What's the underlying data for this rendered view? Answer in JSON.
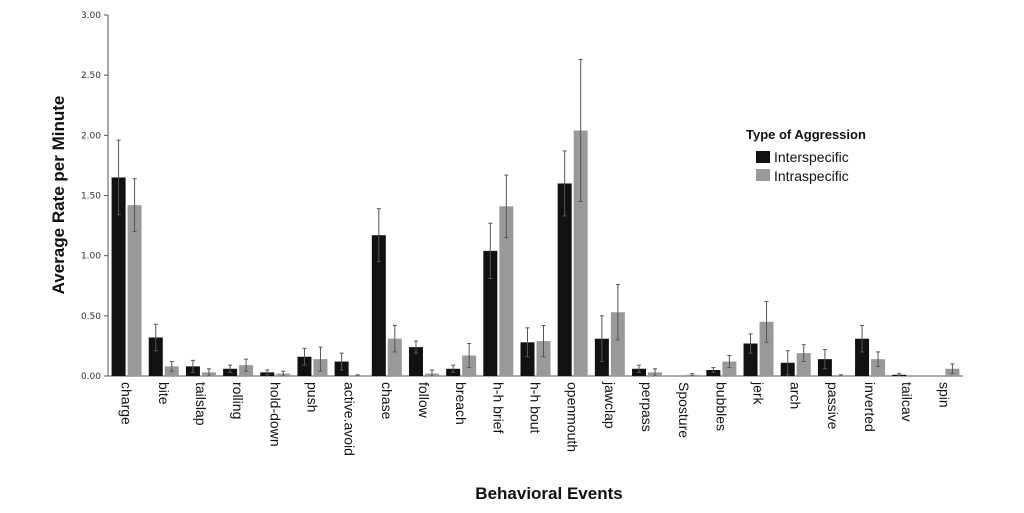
{
  "chart_data": {
    "type": "bar",
    "xlabel": "Behavioral Events",
    "ylabel": "Average Rate per Minute",
    "ylim": [
      0,
      3
    ],
    "yticks": [
      "0.00",
      "0.50",
      "1.00",
      "1.50",
      "2.00",
      "2.50",
      "3.00"
    ],
    "ytick_values": [
      0,
      0.5,
      1.0,
      1.5,
      2.0,
      2.5,
      3.0
    ],
    "categories": [
      "charge",
      "bite",
      "tailslap",
      "rolling",
      "hold-down",
      "push",
      "active.avoid",
      "chase",
      "follow",
      "breach",
      "h-h brief",
      "h-h bout",
      "openmouth",
      "jawclap",
      "perpass",
      "Sposture",
      "bubbles",
      "jerk",
      "arch",
      "passive",
      "inverted",
      "tailcav",
      "spin"
    ],
    "legend": {
      "title": "Type of Aggression",
      "placement": "right"
    },
    "grid": false,
    "error_bars": true,
    "series": [
      {
        "name": "Interspecific",
        "color": "#111111",
        "values": [
          1.65,
          0.32,
          0.08,
          0.06,
          0.03,
          0.16,
          0.12,
          1.17,
          0.24,
          0.06,
          1.04,
          0.28,
          1.6,
          0.31,
          0.06,
          0.0,
          0.05,
          0.27,
          0.11,
          0.14,
          0.31,
          0.01,
          0.0
        ],
        "errors": [
          0.31,
          0.11,
          0.05,
          0.03,
          0.02,
          0.07,
          0.07,
          0.22,
          0.05,
          0.03,
          0.23,
          0.12,
          0.27,
          0.19,
          0.03,
          0.0,
          0.02,
          0.08,
          0.1,
          0.08,
          0.11,
          0.01,
          0.0
        ]
      },
      {
        "name": "Intraspecific",
        "color": "#999999",
        "values": [
          1.42,
          0.08,
          0.03,
          0.09,
          0.02,
          0.14,
          0.0,
          0.31,
          0.02,
          0.17,
          1.41,
          0.29,
          2.04,
          0.53,
          0.03,
          0.01,
          0.12,
          0.45,
          0.19,
          0.0,
          0.14,
          0.0,
          0.06
        ],
        "errors": [
          0.22,
          0.04,
          0.03,
          0.05,
          0.02,
          0.1,
          0.01,
          0.11,
          0.03,
          0.1,
          0.26,
          0.13,
          0.59,
          0.23,
          0.03,
          0.01,
          0.05,
          0.17,
          0.07,
          0.01,
          0.06,
          0.0,
          0.04
        ]
      }
    ]
  }
}
